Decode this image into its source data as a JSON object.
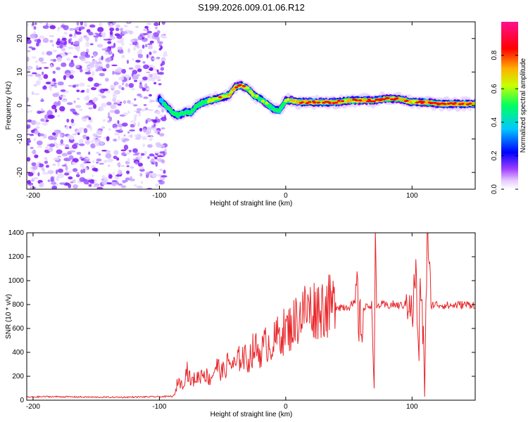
{
  "title": "S199.2026.009.01.06.R12",
  "chart_data": [
    {
      "type": "heatmap",
      "name": "spectrogram",
      "xlabel": "Height of straight line (km)",
      "ylabel": "Frequency (Hz)",
      "xlim": [
        -205,
        150
      ],
      "ylim": [
        -25,
        25
      ],
      "xticks": [
        -200,
        -100,
        0,
        100
      ],
      "yticks": [
        -20,
        -10,
        0,
        10,
        20
      ],
      "colorbar": {
        "label": "Normalized spectral amplitude",
        "range": [
          0,
          1
        ],
        "ticks": [
          0.0,
          0.2,
          0.4,
          0.6,
          0.8
        ],
        "colors": [
          "#ffffff",
          "#d0a8ff",
          "#8a00ff",
          "#0000ff",
          "#00c8ff",
          "#00ff60",
          "#c8ff00",
          "#ffb000",
          "#ff0000",
          "#ff0080"
        ]
      },
      "noise_region_x": [
        -205,
        -95
      ],
      "ridge": {
        "x": [
          -100,
          -95,
          -90,
          -85,
          -80,
          -75,
          -70,
          -65,
          -60,
          -55,
          -50,
          -45,
          -40,
          -35,
          -30,
          -25,
          -20,
          -15,
          -10,
          -5,
          0,
          5,
          10,
          20,
          30,
          40,
          50,
          60,
          70,
          80,
          90,
          100,
          110,
          120,
          130,
          140,
          150
        ],
        "freq": [
          2,
          0,
          -2,
          -3,
          -2,
          -2,
          0,
          1,
          1.5,
          2,
          2.5,
          3,
          5.5,
          6,
          5,
          3,
          2,
          0.5,
          -1,
          -1.5,
          1.5,
          1.5,
          1,
          1,
          1,
          1,
          1.5,
          1.5,
          1.5,
          2,
          2,
          1,
          1,
          0.5,
          0.5,
          0.5,
          0.5
        ],
        "amplitude": [
          0.35,
          0.5,
          0.45,
          0.55,
          0.6,
          0.5,
          0.55,
          0.6,
          0.65,
          0.7,
          0.75,
          0.75,
          0.85,
          0.8,
          0.7,
          0.65,
          0.6,
          0.6,
          0.55,
          0.55,
          0.6,
          0.75,
          0.85,
          0.85,
          0.8,
          0.9,
          0.8,
          0.85,
          0.85,
          0.9,
          0.85,
          0.8,
          0.85,
          0.9,
          0.9,
          0.85,
          0.8
        ]
      }
    },
    {
      "type": "line",
      "name": "snr",
      "xlabel": "Height of straight line (km)",
      "ylabel": "SNR (10 * v/v)",
      "xlim": [
        -205,
        150
      ],
      "ylim": [
        0,
        1400
      ],
      "xticks": [
        -200,
        -100,
        0,
        100
      ],
      "yticks": [
        0,
        200,
        400,
        600,
        800,
        1000,
        1200,
        1400
      ],
      "color": "#e8262a",
      "series": [
        {
          "name": "SNR",
          "x": [
            -205,
            -190,
            -170,
            -150,
            -130,
            -110,
            -95,
            -88,
            -85,
            -82,
            -78,
            -75,
            -72,
            -68,
            -65,
            -60,
            -55,
            -50,
            -45,
            -40,
            -35,
            -30,
            -25,
            -20,
            -15,
            -10,
            -5,
            0,
            5,
            10,
            15,
            20,
            25,
            30,
            35,
            40,
            45,
            50,
            55,
            56,
            58,
            60,
            62,
            65,
            68,
            70,
            71,
            72,
            75,
            80,
            85,
            90,
            95,
            98,
            100,
            103,
            105,
            107,
            110,
            112,
            115,
            120,
            130,
            140,
            150
          ],
          "y": [
            25,
            30,
            28,
            25,
            25,
            28,
            30,
            35,
            180,
            120,
            260,
            150,
            180,
            200,
            240,
            170,
            290,
            230,
            320,
            280,
            380,
            330,
            440,
            400,
            480,
            470,
            560,
            580,
            620,
            700,
            750,
            760,
            770,
            790,
            780,
            790,
            780,
            790,
            800,
            1000,
            650,
            620,
            760,
            790,
            800,
            95,
            1400,
            780,
            800,
            790,
            800,
            790,
            800,
            900,
            650,
            1120,
            300,
            1000,
            180,
            1350,
            800,
            800,
            790,
            800,
            800
          ]
        }
      ]
    }
  ]
}
